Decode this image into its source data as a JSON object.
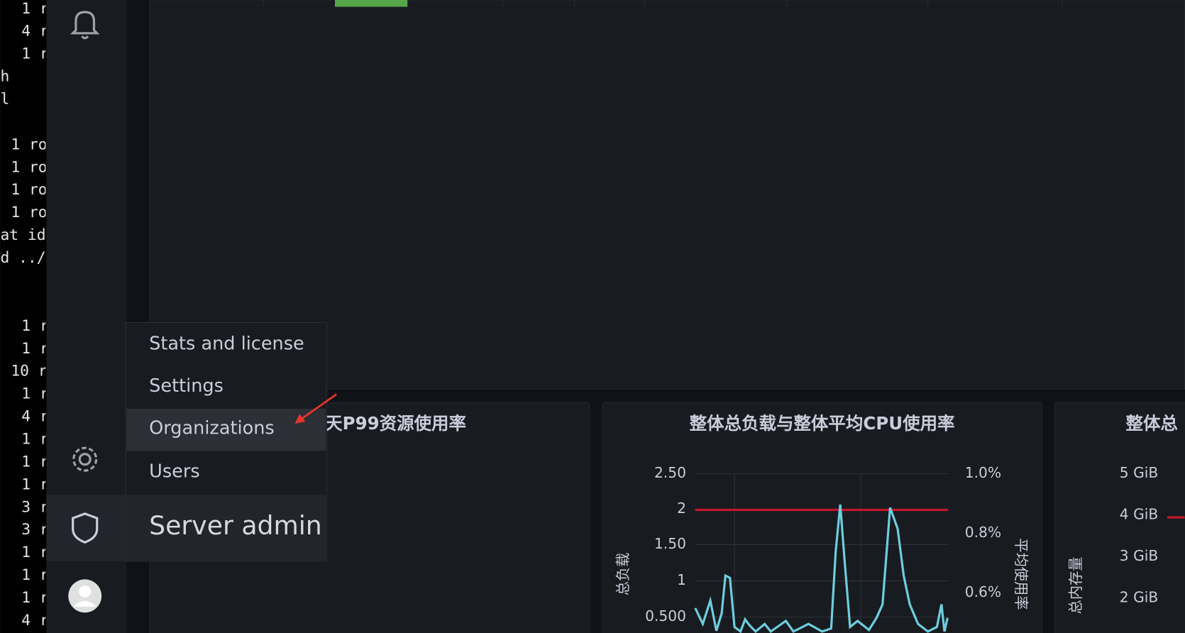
{
  "terminal": {
    "lines": [
      "1 r",
      "4 r",
      "1 r",
      "h",
      "l",
      "1 ro",
      "1 ro",
      "1 ro",
      "1 ro",
      "at id",
      "d ../",
      "1 r",
      "1 r",
      "10 r",
      "1 r",
      "4 r",
      "1 r",
      "1 r",
      "1 r",
      "3 r",
      "3 r",
      "1 r",
      "1 r",
      "1 r",
      "4 r"
    ]
  },
  "menu": {
    "items": [
      "Stats and license",
      "Settings",
      "Organizations",
      "Users"
    ],
    "header": "Server admin"
  },
  "panels": [
    {
      "title": "天P99资源使用率"
    },
    {
      "title": "整体总负载与整体平均CPU使用率",
      "left_axis_title": "总负载",
      "right_axis_title": "平均使用率",
      "left_ticks": [
        "2.50",
        "2",
        "1.50",
        "1",
        "0.500"
      ],
      "right_ticks": [
        "1.0%",
        "0.8%",
        "0.6%"
      ]
    },
    {
      "title": "整体总",
      "axis_title": "总内存量",
      "ticks": [
        "5 GiB",
        "4 GiB",
        "3 GiB",
        "2 GiB"
      ]
    }
  ]
}
